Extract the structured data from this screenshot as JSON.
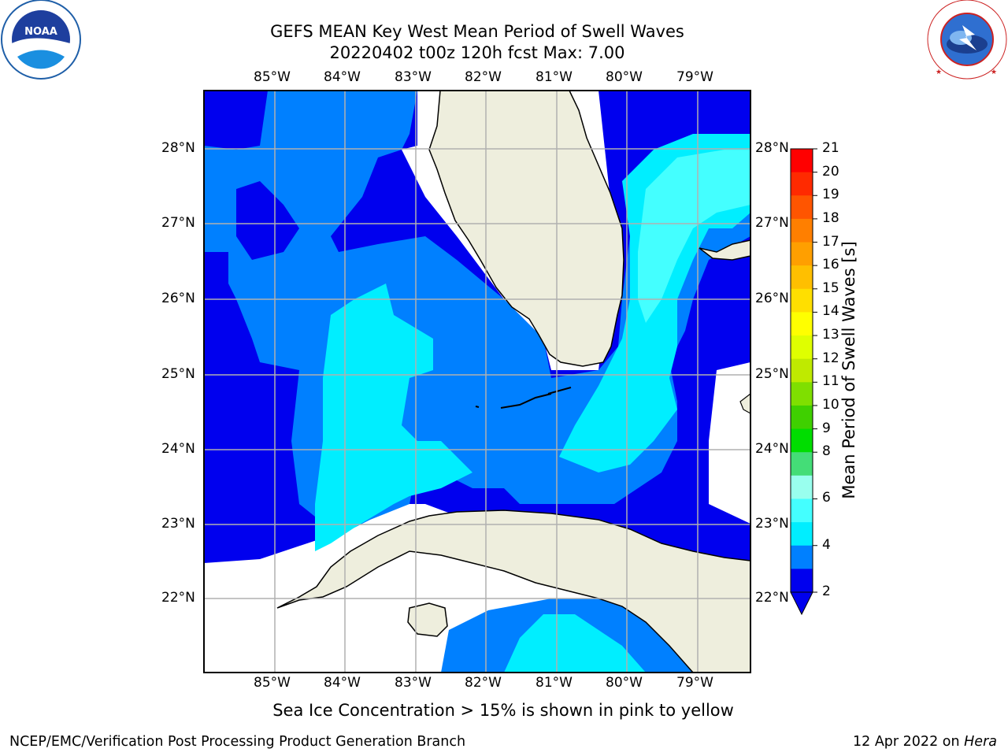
{
  "header": {
    "title_line1": "GEFS MEAN Key West Mean Period of Swell Waves",
    "title_line2": "20220402 t00z 120h fcst   Max: 7.00"
  },
  "logos": {
    "left": {
      "text": "NOAA",
      "ring_text": "NATIONAL OCEANIC AND ATMOSPHERIC ADMINISTRATION · U.S. DEPARTMENT OF COMMERCE"
    },
    "right": {
      "ring_text": "NATIONAL WEATHER SERVICE"
    }
  },
  "map": {
    "lon_labels": [
      "85°W",
      "84°W",
      "83°W",
      "82°W",
      "81°W",
      "80°W",
      "79°W"
    ],
    "lat_labels": [
      "28°N",
      "27°N",
      "26°N",
      "25°N",
      "24°N",
      "23°N",
      "22°N"
    ],
    "land_color": "#eeeedd",
    "grid_color": "#b0b0b0"
  },
  "colorbar": {
    "label": "Mean Period of Swell Waves [s]",
    "ticks": [
      "21",
      "20",
      "19",
      "18",
      "17",
      "16",
      "15",
      "14",
      "13",
      "12",
      "11",
      "10",
      "9",
      "8",
      "6",
      "4",
      "2"
    ],
    "colors": [
      "#ff0000",
      "#ff2a00",
      "#ff5500",
      "#ff7f00",
      "#ff9f00",
      "#ffbf00",
      "#ffdf00",
      "#ffff00",
      "#dfff00",
      "#bfea00",
      "#7fdf00",
      "#3fd000",
      "#00dd00",
      "#44dd77",
      "#99ffee",
      "#44ffff",
      "#00eeff",
      "#0080ff",
      "#0000ee"
    ],
    "extend_color": "#0000ee"
  },
  "caption": "Sea Ice Concentration > 15% is shown in pink to yellow",
  "footer": {
    "left": "NCEP/EMC/Verification Post Processing Product Generation Branch",
    "right_date": "12 Apr 2022 on ",
    "right_host": "Hera"
  }
}
